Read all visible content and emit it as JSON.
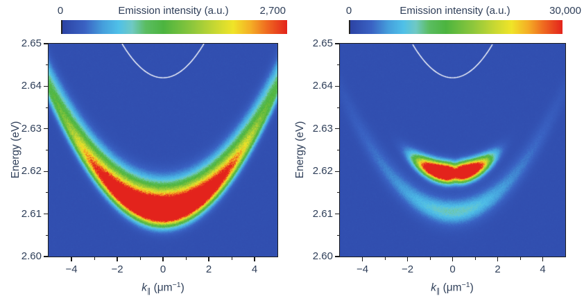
{
  "style": {
    "text_color": "#2e3e58",
    "frame_color": "#1a1a1a",
    "curve_color": "#ffffff",
    "page_background": "#ffffff",
    "colormap_stops": [
      [
        0.0,
        "#2c43a4"
      ],
      [
        0.1,
        "#3a62c3"
      ],
      [
        0.18,
        "#459fdc"
      ],
      [
        0.25,
        "#4fc0e8"
      ],
      [
        0.31,
        "#6fc9c3"
      ],
      [
        0.37,
        "#5bbd62"
      ],
      [
        0.45,
        "#4cb43f"
      ],
      [
        0.58,
        "#8ec73c"
      ],
      [
        0.68,
        "#c8d832"
      ],
      [
        0.76,
        "#f0e428"
      ],
      [
        0.84,
        "#f4ac25"
      ],
      [
        0.91,
        "#ef6a20"
      ],
      [
        1.0,
        "#e3231c"
      ]
    ]
  },
  "chart_data": [
    {
      "type": "heatmap",
      "title": "Emission intensity (a.u.)",
      "ylabel": "Energy (eV)",
      "xlabel_text": "k∥ (μm⁻¹)",
      "xlabel_parts": {
        "symbol": "k",
        "subscript": "∥",
        "unit_open": " (μm",
        "unit_sup": "−1",
        "unit_close": ")"
      },
      "xlim": [
        -5,
        5
      ],
      "ylim": [
        2.6,
        2.65
      ],
      "xtick_values": [
        -4,
        -2,
        0,
        2,
        4
      ],
      "xtick_labels": [
        "−4",
        "−2",
        "0",
        "2",
        "4"
      ],
      "xtick_minor": [
        -3,
        -1,
        1,
        3
      ],
      "ytick_values": [
        2.6,
        2.61,
        2.62,
        2.63,
        2.64,
        2.65
      ],
      "ytick_labels": [
        "2.60",
        "2.61",
        "2.62",
        "2.63",
        "2.64",
        "2.65"
      ],
      "ytick_minor": [
        2.605,
        2.615,
        2.625,
        2.635,
        2.645
      ],
      "colorbar": {
        "min": 0,
        "max": 2700,
        "min_label": "0",
        "max_label": "2,700",
        "title": "Emission intensity (a.u.)"
      },
      "features": {
        "background_level": 0.04,
        "noise": 0.1,
        "bands": [
          {
            "name": "lower-polariton-band-core",
            "e0": 2.6105,
            "curvature": 0.00115,
            "sigma_up": 0.0028,
            "sigma_down": 0.0028,
            "amp": 1.35,
            "floor": 0.15,
            "k_width": 3.0,
            "k_power": 2
          },
          {
            "name": "lower-polariton-band-broad",
            "e0": 2.6135,
            "curvature": 0.00115,
            "sigma_up": 0.0042,
            "sigma_down": 0.0042,
            "amp": 0.55,
            "floor": 0.15,
            "k_width": 3.6,
            "k_power": 2
          }
        ],
        "white_parabola": {
          "e_min": 2.642,
          "curvature": 0.0025
        }
      }
    },
    {
      "type": "heatmap",
      "title": "Emission intensity (a.u.)",
      "ylabel": "Energy (eV)",
      "xlabel_text": "k∥ (μm⁻¹)",
      "xlabel_parts": {
        "symbol": "k",
        "subscript": "∥",
        "unit_open": " (μm",
        "unit_sup": "−1",
        "unit_close": ")"
      },
      "xlim": [
        -5,
        5
      ],
      "ylim": [
        2.6,
        2.65
      ],
      "xtick_values": [
        -4,
        -2,
        0,
        2,
        4
      ],
      "xtick_labels": [
        "−4",
        "−2",
        "0",
        "2",
        "4"
      ],
      "xtick_minor": [
        -3,
        -1,
        1,
        3
      ],
      "ytick_values": [
        2.6,
        2.61,
        2.62,
        2.63,
        2.64,
        2.65
      ],
      "ytick_labels": [
        "2.60",
        "2.61",
        "2.62",
        "2.63",
        "2.64",
        "2.65"
      ],
      "ytick_minor": [
        2.605,
        2.615,
        2.625,
        2.635,
        2.645
      ],
      "colorbar": {
        "min": 0,
        "max": 30000,
        "min_label": "0",
        "max_label": "30,000",
        "title": "Emission intensity (a.u.)"
      },
      "features": {
        "background_level": 0.04,
        "noise": 0.1,
        "bands": [
          {
            "name": "condensate-peak",
            "e0": 2.6195,
            "curvature": 0.0011,
            "sigma_up": 0.0021,
            "sigma_down": 0.0019,
            "amp": 1.8,
            "floor": 0,
            "k_width": 1.5,
            "k_power": 3,
            "dip": {
              "k0": 0.12,
              "width": 0.22,
              "depth": 0.32
            }
          },
          {
            "name": "thermal-arc",
            "e0": 2.6105,
            "curvature": 0.0011,
            "sigma_up": 0.0022,
            "sigma_down": 0.0022,
            "amp": 0.17,
            "floor": 0,
            "k_width": 2.0,
            "k_power": 2
          },
          {
            "name": "lp-dispersion-trace",
            "e0": 2.6105,
            "curvature": 0.00115,
            "sigma_up": 0.0035,
            "sigma_down": 0.0035,
            "amp": 0.1,
            "floor": 0,
            "k_width": 4.5,
            "k_power": 4
          }
        ],
        "white_parabola": {
          "e_min": 2.642,
          "curvature": 0.0025
        }
      }
    }
  ],
  "layout_note": ""
}
